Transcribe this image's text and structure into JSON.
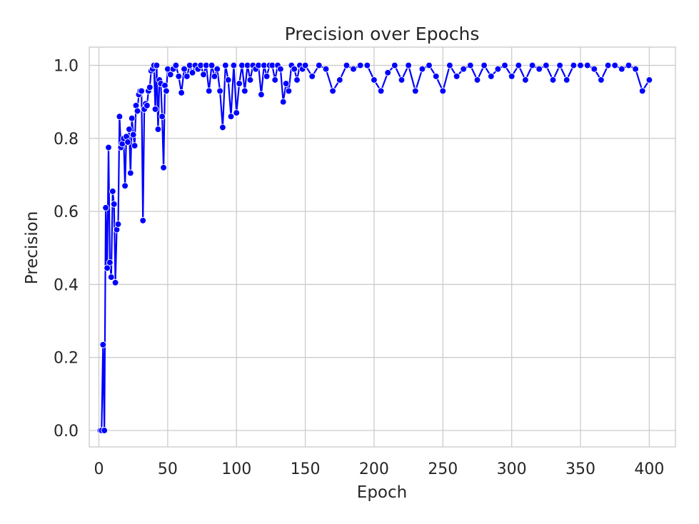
{
  "chart_data": {
    "type": "line",
    "title": "Precision over Epochs",
    "xlabel": "Epoch",
    "ylabel": "Precision",
    "xlim": [
      -7,
      419
    ],
    "ylim": [
      -0.045,
      1.05
    ],
    "xticks": [
      0,
      50,
      100,
      150,
      200,
      250,
      300,
      350,
      400
    ],
    "yticks": [
      0.0,
      0.2,
      0.4,
      0.6,
      0.8,
      1.0
    ],
    "ytick_labels": [
      "0.0",
      "0.2",
      "0.4",
      "0.6",
      "0.8",
      "1.0"
    ],
    "grid": true,
    "marker": "circle",
    "colors": {
      "line": "#0000ff",
      "marker": "#0000ff",
      "marker_edge": "#ffffff",
      "grid": "#cccccc",
      "spine": "#cccccc",
      "text": "#262626"
    },
    "series": [
      {
        "x": [
          1,
          2,
          3,
          4,
          5,
          6,
          7,
          8,
          9,
          10,
          11,
          12,
          13,
          14,
          15,
          16,
          17,
          18,
          19,
          20,
          21,
          22,
          23,
          24,
          25,
          26,
          27,
          28,
          29,
          30,
          31,
          32,
          33,
          34,
          35,
          36,
          37,
          38,
          39,
          40,
          41,
          42,
          43,
          44,
          45,
          46,
          47,
          48,
          49,
          50,
          52,
          54,
          56,
          58,
          60,
          62,
          64,
          66,
          68,
          70,
          72,
          74,
          76,
          78,
          80,
          82,
          84,
          86,
          88,
          90,
          92,
          94,
          96,
          98,
          100,
          102,
          104,
          106,
          108,
          110,
          112,
          114,
          116,
          118,
          120,
          122,
          124,
          126,
          128,
          130,
          132,
          134,
          136,
          138,
          140,
          142,
          144,
          146,
          148,
          150,
          155,
          160,
          165,
          170,
          175,
          180,
          185,
          190,
          195,
          200,
          205,
          210,
          215,
          220,
          225,
          230,
          235,
          240,
          245,
          250,
          255,
          260,
          265,
          270,
          275,
          280,
          285,
          290,
          295,
          300,
          305,
          310,
          315,
          320,
          325,
          330,
          335,
          340,
          345,
          350,
          355,
          360,
          365,
          370,
          375,
          380,
          385,
          390,
          395,
          400
        ],
        "y": [
          0.0,
          0.0,
          0.235,
          0.0,
          0.61,
          0.445,
          0.775,
          0.46,
          0.42,
          0.655,
          0.62,
          0.405,
          0.55,
          0.565,
          0.86,
          0.775,
          0.785,
          0.8,
          0.67,
          0.805,
          0.79,
          0.825,
          0.705,
          0.855,
          0.81,
          0.78,
          0.89,
          0.875,
          0.92,
          0.93,
          0.93,
          0.575,
          0.88,
          0.895,
          0.89,
          0.93,
          0.94,
          0.985,
          0.99,
          1.0,
          0.88,
          1.0,
          0.825,
          0.96,
          0.95,
          0.86,
          0.72,
          0.945,
          0.93,
          0.99,
          0.975,
          0.99,
          1.0,
          0.97,
          0.925,
          0.99,
          0.97,
          1.0,
          0.98,
          1.0,
          0.99,
          1.0,
          0.975,
          1.0,
          0.93,
          1.0,
          0.97,
          0.99,
          0.93,
          0.83,
          1.0,
          0.96,
          0.86,
          1.0,
          0.87,
          0.95,
          1.0,
          0.93,
          1.0,
          0.96,
          1.0,
          0.99,
          1.0,
          0.92,
          1.0,
          0.97,
          1.0,
          1.0,
          0.96,
          1.0,
          0.99,
          0.9,
          0.95,
          0.93,
          1.0,
          0.99,
          0.96,
          1.0,
          0.99,
          1.0,
          0.97,
          1.0,
          0.99,
          0.93,
          0.96,
          1.0,
          0.99,
          1.0,
          1.0,
          0.96,
          0.93,
          0.98,
          1.0,
          0.96,
          1.0,
          0.93,
          0.99,
          1.0,
          0.97,
          0.93,
          1.0,
          0.97,
          0.99,
          1.0,
          0.96,
          1.0,
          0.97,
          0.99,
          1.0,
          0.97,
          1.0,
          0.96,
          1.0,
          0.99,
          1.0,
          0.96,
          1.0,
          0.96,
          1.0,
          1.0,
          1.0,
          0.99,
          0.96,
          1.0,
          1.0,
          0.99,
          1.0,
          0.99,
          0.93,
          0.96
        ]
      }
    ]
  }
}
